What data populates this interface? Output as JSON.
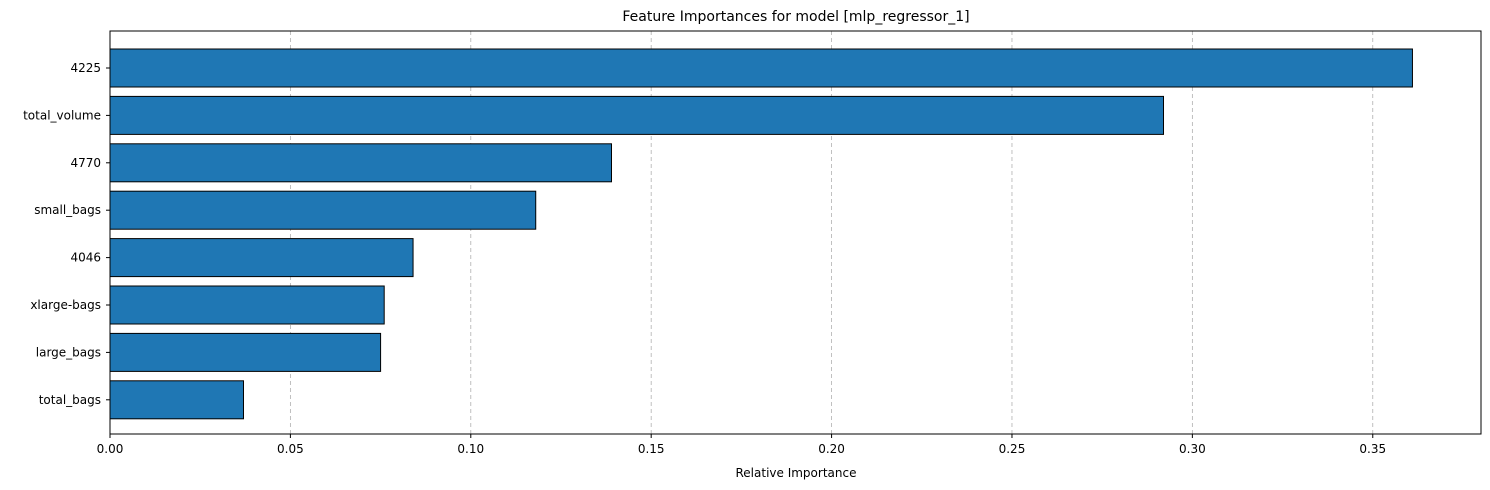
{
  "chart_data": {
    "type": "bar",
    "orientation": "horizontal",
    "title": "Feature Importances for model [mlp_regressor_1]",
    "xlabel": "Relative Importance",
    "ylabel": "",
    "categories": [
      "4225",
      "total_volume",
      "4770",
      "small_bags",
      "4046",
      "xlarge-bags",
      "large_bags",
      "total_bags"
    ],
    "values": [
      0.361,
      0.292,
      0.139,
      0.118,
      0.084,
      0.076,
      0.075,
      0.037
    ],
    "xlim": [
      0,
      0.38
    ],
    "xticks": [
      "0.00",
      "0.05",
      "0.10",
      "0.15",
      "0.20",
      "0.25",
      "0.30",
      "0.35"
    ],
    "grid": "x-dashed",
    "bar_color": "#1f77b4",
    "edge_color": "#000000"
  }
}
